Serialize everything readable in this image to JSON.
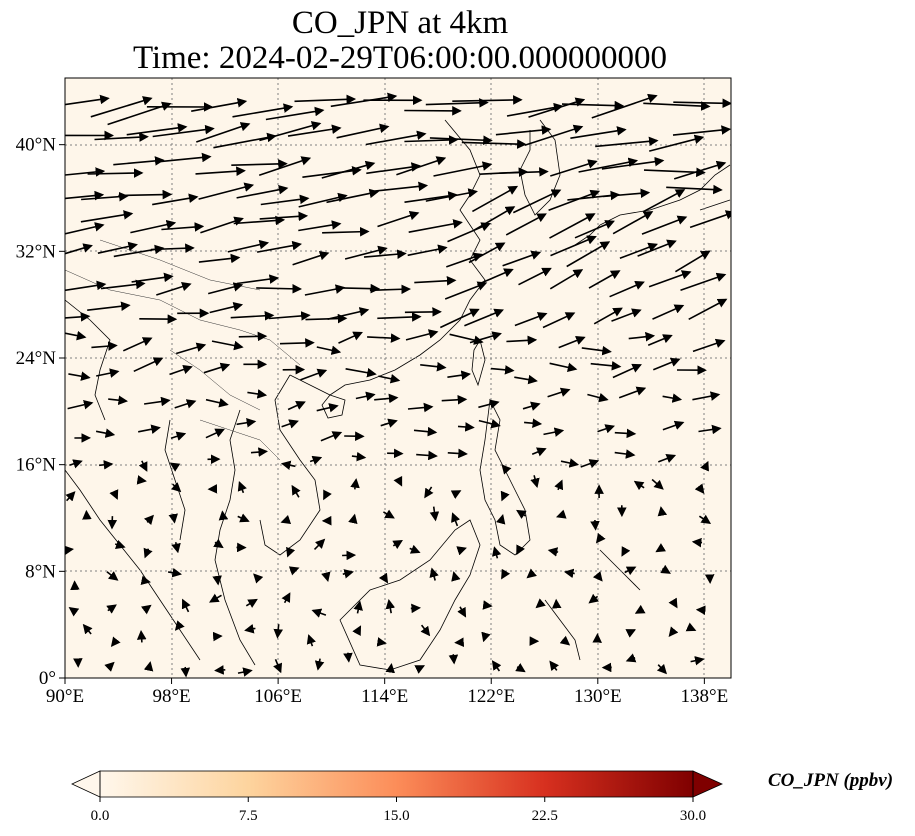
{
  "title": {
    "line1": "CO_JPN at 4km",
    "line2": "Time: 2024-02-29T06:00:00.000000000"
  },
  "map": {
    "extent": {
      "lon": [
        90,
        140
      ],
      "lat": [
        0,
        45
      ]
    },
    "background_color": "#fef6ea",
    "gridline_style": "dotted gray",
    "x_ticks": [
      {
        "value": 90,
        "label": "90°E"
      },
      {
        "value": 98,
        "label": "98°E"
      },
      {
        "value": 106,
        "label": "106°E"
      },
      {
        "value": 114,
        "label": "114°E"
      },
      {
        "value": 122,
        "label": "122°E"
      },
      {
        "value": 130,
        "label": "130°E"
      },
      {
        "value": 138,
        "label": "138°E"
      }
    ],
    "y_ticks": [
      {
        "value": 40,
        "label": "40°N"
      },
      {
        "value": 32,
        "label": "32°N"
      },
      {
        "value": 24,
        "label": "24°N"
      },
      {
        "value": 16,
        "label": "16°N"
      },
      {
        "value": 8,
        "label": "8°N"
      },
      {
        "value": 0,
        "label": "0°"
      }
    ],
    "wind_vectors_description": "Wind quiver field: strong westerlies in north, weaker/variable flow in south"
  },
  "colorbar": {
    "label": "CO_JPN (ppbv)",
    "range": [
      0,
      30
    ],
    "ticks": [
      "0.0",
      "7.5",
      "15.0",
      "22.5",
      "30.0"
    ],
    "colormap": "OrRd",
    "colors": [
      "#fff7ec",
      "#fdd49e",
      "#fc8d59",
      "#d7301f",
      "#7f0000"
    ]
  }
}
